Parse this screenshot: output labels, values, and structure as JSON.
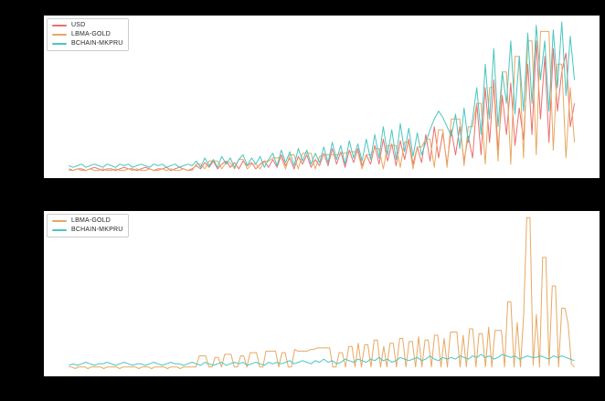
{
  "figure": {
    "background_color": "#000000",
    "axes_background_color": "#ffffff",
    "tick_labels_visible": false
  },
  "chart_data": [
    {
      "type": "line",
      "title": "",
      "xlabel": "",
      "ylabel": "",
      "grid": false,
      "legend_position": "upper left",
      "axis_ticks": "none visible (black on black figure background)",
      "value_encoding": "values_normalized are y-values read from pixels, 0 = axis baseline, 1 = top of axes",
      "series": [
        {
          "name": "USD",
          "color": "#ed6f6e",
          "values_normalized": [
            0.03,
            0.02,
            0.03,
            0.03,
            0.02,
            0.03,
            0.04,
            0.03,
            0.02,
            0.03,
            0.03,
            0.02,
            0.03,
            0.04,
            0.03,
            0.03,
            0.02,
            0.03,
            0.04,
            0.03,
            0.02,
            0.03,
            0.03,
            0.04,
            0.02,
            0.03,
            0.04,
            0.03,
            0.02,
            0.03,
            0.05,
            0.03,
            0.07,
            0.04,
            0.08,
            0.03,
            0.06,
            0.08,
            0.04,
            0.07,
            0.03,
            0.08,
            0.05,
            0.07,
            0.03,
            0.06,
            0.08,
            0.04,
            0.09,
            0.04,
            0.12,
            0.05,
            0.1,
            0.03,
            0.11,
            0.06,
            0.12,
            0.04,
            0.09,
            0.05,
            0.13,
            0.05,
            0.16,
            0.06,
            0.14,
            0.04,
            0.15,
            0.07,
            0.16,
            0.05,
            0.12,
            0.06,
            0.18,
            0.06,
            0.22,
            0.08,
            0.19,
            0.05,
            0.21,
            0.09,
            0.22,
            0.06,
            0.17,
            0.07,
            0.25,
            0.08,
            0.3,
            0.1,
            0.26,
            0.06,
            0.28,
            0.12,
            0.3,
            0.08,
            0.24,
            0.1,
            0.45,
            0.12,
            0.55,
            0.2,
            0.6,
            0.15,
            0.5,
            0.25,
            0.58,
            0.18,
            0.42,
            0.22,
            0.7,
            0.25,
            0.85,
            0.35,
            0.75,
            0.2,
            0.8,
            0.4,
            0.65,
            0.77,
            0.3,
            0.45
          ]
        },
        {
          "name": "LBMA-GOLD",
          "color": "#e8a862",
          "values_normalized": [
            0.02,
            0.02,
            0.03,
            0.02,
            0.02,
            0.03,
            0.02,
            0.02,
            0.03,
            0.02,
            0.02,
            0.03,
            0.02,
            0.02,
            0.03,
            0.02,
            0.03,
            0.02,
            0.02,
            0.03,
            0.02,
            0.02,
            0.03,
            0.02,
            0.03,
            0.02,
            0.02,
            0.03,
            0.02,
            0.02,
            0.06,
            0.06,
            0.03,
            0.08,
            0.08,
            0.08,
            0.03,
            0.07,
            0.07,
            0.03,
            0.09,
            0.09,
            0.03,
            0.06,
            0.06,
            0.03,
            0.08,
            0.08,
            0.1,
            0.1,
            0.1,
            0.03,
            0.12,
            0.12,
            0.03,
            0.13,
            0.13,
            0.13,
            0.03,
            0.11,
            0.12,
            0.12,
            0.12,
            0.12,
            0.13,
            0.13,
            0.14,
            0.14,
            0.14,
            0.03,
            0.12,
            0.12,
            0.16,
            0.16,
            0.03,
            0.18,
            0.18,
            0.18,
            0.04,
            0.2,
            0.2,
            0.03,
            0.17,
            0.17,
            0.22,
            0.22,
            0.04,
            0.28,
            0.28,
            0.04,
            0.35,
            0.35,
            0.35,
            0.05,
            0.3,
            0.3,
            0.45,
            0.45,
            0.06,
            0.55,
            0.55,
            0.08,
            0.65,
            0.65,
            0.06,
            0.75,
            0.75,
            0.1,
            0.85,
            0.85,
            0.12,
            0.91,
            0.91,
            0.91,
            0.15,
            0.7,
            0.7,
            0.1,
            0.55,
            0.2
          ]
        },
        {
          "name": "BCHAIN-MKPRU",
          "color": "#4ac6bf",
          "values_normalized": [
            0.05,
            0.04,
            0.05,
            0.06,
            0.04,
            0.05,
            0.06,
            0.05,
            0.04,
            0.06,
            0.05,
            0.04,
            0.06,
            0.05,
            0.06,
            0.04,
            0.05,
            0.06,
            0.05,
            0.04,
            0.06,
            0.05,
            0.06,
            0.04,
            0.05,
            0.06,
            0.04,
            0.05,
            0.06,
            0.05,
            0.08,
            0.04,
            0.1,
            0.05,
            0.09,
            0.04,
            0.11,
            0.06,
            0.1,
            0.04,
            0.09,
            0.12,
            0.05,
            0.1,
            0.06,
            0.11,
            0.04,
            0.09,
            0.13,
            0.05,
            0.15,
            0.07,
            0.14,
            0.05,
            0.16,
            0.08,
            0.15,
            0.06,
            0.13,
            0.07,
            0.17,
            0.07,
            0.2,
            0.09,
            0.18,
            0.06,
            0.21,
            0.1,
            0.19,
            0.08,
            0.22,
            0.09,
            0.25,
            0.1,
            0.3,
            0.12,
            0.28,
            0.09,
            0.32,
            0.14,
            0.29,
            0.11,
            0.26,
            0.12,
            0.2,
            0.28,
            0.35,
            0.4,
            0.36,
            0.3,
            0.24,
            0.38,
            0.16,
            0.42,
            0.2,
            0.35,
            0.55,
            0.25,
            0.7,
            0.35,
            0.8,
            0.3,
            0.65,
            0.45,
            0.85,
            0.38,
            0.75,
            0.4,
            0.9,
            0.45,
            0.95,
            0.6,
            0.85,
            0.4,
            0.92,
            0.55,
            0.97,
            0.5,
            0.88,
            0.6
          ]
        }
      ]
    },
    {
      "type": "line",
      "title": "",
      "xlabel": "",
      "ylabel": "",
      "grid": false,
      "legend_position": "upper left",
      "axis_ticks": "none visible (black on black figure background)",
      "value_encoding": "values_normalized are y-values read from pixels, 0 = axis baseline, 1 = top of axes",
      "series": [
        {
          "name": "LBMA-GOLD",
          "color": "#e8a862",
          "values_normalized": [
            0.03,
            0.03,
            0.02,
            0.03,
            0.03,
            0.03,
            0.02,
            0.03,
            0.03,
            0.03,
            0.03,
            0.02,
            0.03,
            0.03,
            0.03,
            0.03,
            0.02,
            0.03,
            0.03,
            0.03,
            0.03,
            0.03,
            0.02,
            0.03,
            0.03,
            0.03,
            0.02,
            0.03,
            0.03,
            0.03,
            0.03,
            0.02,
            0.03,
            0.03,
            0.03,
            0.02,
            0.03,
            0.03,
            0.03,
            0.03,
            0.03,
            0.1,
            0.1,
            0.1,
            0.03,
            0.03,
            0.09,
            0.09,
            0.03,
            0.11,
            0.11,
            0.11,
            0.03,
            0.03,
            0.1,
            0.1,
            0.03,
            0.12,
            0.12,
            0.12,
            0.03,
            0.03,
            0.13,
            0.13,
            0.13,
            0.13,
            0.03,
            0.12,
            0.12,
            0.03,
            0.03,
            0.14,
            0.13,
            0.13,
            0.13,
            0.13,
            0.14,
            0.14,
            0.15,
            0.15,
            0.15,
            0.15,
            0.15,
            0.03,
            0.03,
            0.12,
            0.12,
            0.03,
            0.16,
            0.16,
            0.03,
            0.18,
            0.03,
            0.17,
            0.17,
            0.03,
            0.2,
            0.2,
            0.03,
            0.16,
            0.03,
            0.18,
            0.18,
            0.03,
            0.21,
            0.21,
            0.03,
            0.19,
            0.19,
            0.03,
            0.22,
            0.03,
            0.2,
            0.2,
            0.03,
            0.23,
            0.23,
            0.03,
            0.21,
            0.03,
            0.25,
            0.25,
            0.25,
            0.03,
            0.23,
            0.03,
            0.27,
            0.27,
            0.03,
            0.24,
            0.24,
            0.03,
            0.28,
            0.03,
            0.26,
            0.26,
            0.26,
            0.03,
            0.44,
            0.44,
            0.03,
            0.31,
            0.03,
            0.36,
            0.97,
            0.97,
            0.04,
            0.36,
            0.03,
            0.72,
            0.72,
            0.04,
            0.54,
            0.54,
            0.03,
            0.4,
            0.4,
            0.3,
            0.05,
            0.03
          ]
        },
        {
          "name": "BCHAIN-MKPRU",
          "color": "#4ac6bf",
          "values_normalized": [
            0.04,
            0.05,
            0.04,
            0.05,
            0.06,
            0.05,
            0.04,
            0.05,
            0.05,
            0.06,
            0.05,
            0.04,
            0.05,
            0.06,
            0.05,
            0.04,
            0.05,
            0.05,
            0.04,
            0.05,
            0.06,
            0.05,
            0.04,
            0.05,
            0.06,
            0.05,
            0.05,
            0.04,
            0.05,
            0.06,
            0.05,
            0.04,
            0.06,
            0.05,
            0.04,
            0.05,
            0.06,
            0.04,
            0.05,
            0.06,
            0.05,
            0.06,
            0.04,
            0.05,
            0.06,
            0.05,
            0.04,
            0.06,
            0.05,
            0.06,
            0.05,
            0.06,
            0.07,
            0.05,
            0.06,
            0.07,
            0.06,
            0.05,
            0.07,
            0.06,
            0.08,
            0.06,
            0.07,
            0.05,
            0.06,
            0.08,
            0.07,
            0.06,
            0.08,
            0.07,
            0.06,
            0.08,
            0.07,
            0.09,
            0.07,
            0.08,
            0.06,
            0.07,
            0.09,
            0.08,
            0.07,
            0.08,
            0.09,
            0.07,
            0.08,
            0.1,
            0.08,
            0.07,
            0.09,
            0.08,
            0.09,
            0.08,
            0.1,
            0.09,
            0.08,
            0.1,
            0.09,
            0.11,
            0.09,
            0.1,
            0.08,
            0.09,
            0.11,
            0.1,
            0.09,
            0.1,
            0.08,
            0.09,
            0.1,
            0.09,
            0.09,
            0.1,
            0.09,
            0.08,
            0.1,
            0.09,
            0.1,
            0.09,
            0.08,
            0.07
          ]
        }
      ]
    }
  ]
}
